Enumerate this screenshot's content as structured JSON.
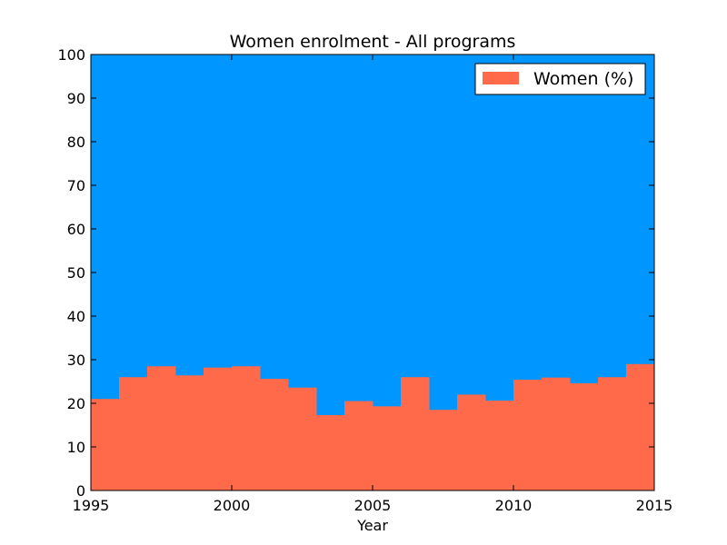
{
  "chart_data": {
    "type": "area",
    "title": "Women enrolment - All programs",
    "xlabel": "Year",
    "ylabel": "",
    "xlim": [
      1995,
      2015
    ],
    "ylim": [
      0,
      100
    ],
    "x_ticks": [
      1995,
      2000,
      2005,
      2010,
      2015
    ],
    "y_ticks": [
      0,
      10,
      20,
      30,
      40,
      50,
      60,
      70,
      80,
      90,
      100
    ],
    "legend_position": "top-right",
    "grid": false,
    "colors": {
      "women": "#ff6a4b",
      "background": "#0096ff"
    },
    "series": [
      {
        "name": "Women (%)",
        "step": "post",
        "x": [
          1995,
          1996,
          1997,
          1998,
          1999,
          2000,
          2001,
          2002,
          2003,
          2004,
          2005,
          2006,
          2007,
          2008,
          2009,
          2010,
          2011,
          2012,
          2013,
          2014
        ],
        "values": [
          21.0,
          26.0,
          28.5,
          26.4,
          28.2,
          28.5,
          25.6,
          23.6,
          17.3,
          20.5,
          19.3,
          26.0,
          18.5,
          22.0,
          20.6,
          25.4,
          25.9,
          24.6,
          26.0,
          29.0
        ]
      }
    ]
  }
}
